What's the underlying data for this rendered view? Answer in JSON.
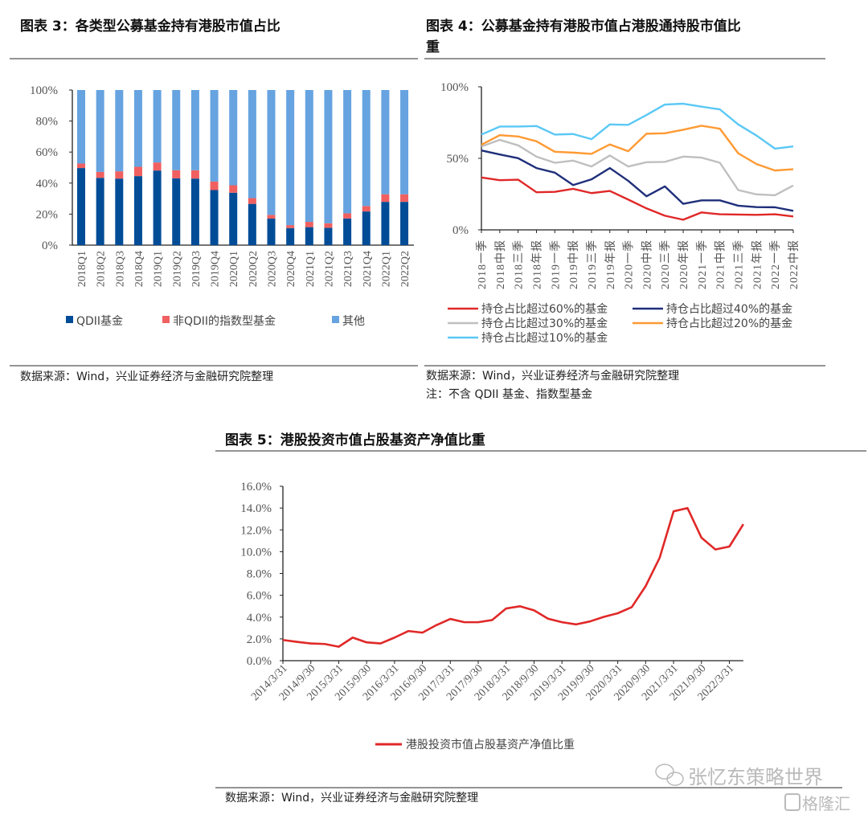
{
  "chart_data": [
    {
      "type": "bar",
      "stacked": true,
      "title": "图表 3：各类型公募基金持有港股市值占比",
      "categories": [
        "2018Q1",
        "2018Q2",
        "2018Q3",
        "2018Q4",
        "2019Q1",
        "2019Q2",
        "2019Q3",
        "2019Q4",
        "2020Q1",
        "2020Q2",
        "2020Q3",
        "2020Q4",
        "2021Q1",
        "2021Q2",
        "2021Q3",
        "2021Q4",
        "2022Q1",
        "2022Q2"
      ],
      "series": [
        {
          "name": "QDII基金",
          "color": "#004C97",
          "values": [
            49.7,
            43.4,
            42.9,
            44.5,
            48.1,
            43.1,
            42.9,
            35.5,
            33.8,
            26.6,
            17.1,
            11.0,
            11.6,
            11.2,
            17.2,
            21.7,
            27.9,
            27.9
          ]
        },
        {
          "name": "非QDII的指数型基金",
          "color": "#F06060",
          "values": [
            2.9,
            3.8,
            4.7,
            6.0,
            5.2,
            5.2,
            5.4,
            5.5,
            4.8,
            3.7,
            2.4,
            1.9,
            3.4,
            2.9,
            3.3,
            3.5,
            4.9,
            4.9
          ]
        },
        {
          "name": "其他",
          "color": "#66A3E0",
          "values": [
            47.4,
            52.8,
            52.4,
            49.5,
            46.7,
            51.7,
            51.7,
            59.0,
            61.4,
            69.7,
            80.5,
            87.1,
            85.0,
            85.9,
            79.5,
            74.8,
            67.2,
            67.2
          ]
        }
      ],
      "yticks": [
        "0%",
        "20%",
        "40%",
        "60%",
        "80%",
        "100%"
      ],
      "ylim": [
        0,
        100
      ],
      "legend": "bottom",
      "source": "数据来源：Wind，兴业证券经济与金融研究院整理"
    },
    {
      "type": "line",
      "title_line1": "图表 4：公募基金持有港股市值占港股通持股市值比",
      "title_line2": "重",
      "categories": [
        "2018一季",
        "2018中报",
        "2018三季",
        "2018年报",
        "2019一季",
        "2019中报",
        "2019三季",
        "2019年报",
        "2020一季",
        "2020中报",
        "2020三季",
        "2020年报",
        "2021一季",
        "2021中报",
        "2021三季",
        "2021年报",
        "2022一季",
        "2022中报"
      ],
      "series": [
        {
          "name": "持仓占比超过60%的基金",
          "color": "#E02828",
          "values": [
            36.6,
            34.7,
            35.1,
            26.3,
            26.6,
            28.7,
            25.7,
            27.2,
            21.2,
            15.0,
            9.9,
            7.1,
            12.2,
            10.9,
            10.7,
            10.5,
            10.9,
            9.4
          ]
        },
        {
          "name": "持仓占比超过40%的基金",
          "color": "#1F2F7A",
          "values": [
            55.5,
            52.7,
            50.1,
            43.2,
            40.0,
            31.3,
            35.3,
            43.2,
            34.3,
            23.5,
            30.4,
            18.2,
            20.6,
            20.6,
            16.9,
            15.9,
            15.8,
            13.3
          ]
        },
        {
          "name": "持仓占比超过30%的基金",
          "color": "#BFBFBF",
          "values": [
            58.3,
            62.9,
            59.1,
            51.2,
            46.9,
            48.4,
            44.3,
            52.0,
            44.3,
            47.3,
            47.5,
            51.2,
            50.5,
            46.9,
            27.8,
            24.8,
            24.2,
            31.0
          ]
        },
        {
          "name": "持仓占比超过20%的基金",
          "color": "#FF9A33",
          "values": [
            59.5,
            66.2,
            65.3,
            61.9,
            54.6,
            54.0,
            53.1,
            59.7,
            55.0,
            67.2,
            67.5,
            70.0,
            72.8,
            70.7,
            53.5,
            46.0,
            41.5,
            42.4
          ]
        },
        {
          "name": "持仓占比超过10%的基金",
          "color": "#5BC8F5",
          "values": [
            66.6,
            72.2,
            72.2,
            72.6,
            66.6,
            67.0,
            63.4,
            73.7,
            73.4,
            80.3,
            87.6,
            88.2,
            86.1,
            84.2,
            73.7,
            65.9,
            56.8,
            58.3
          ]
        }
      ],
      "yticks": [
        "0%",
        "50%",
        "100%"
      ],
      "ylim": [
        0,
        100
      ],
      "legend": "bottom",
      "source": "数据来源：Wind，兴业证券经济与金融研究院整理",
      "note": "注：不含 QDII 基金、指数型基金"
    },
    {
      "type": "line",
      "title": "图表 5：港股投资市值占股基资产净值比重",
      "x_tick_labels": [
        "2014/3/31",
        "2014/9/30",
        "2015/3/31",
        "2015/9/30",
        "2016/3/31",
        "2016/9/30",
        "2017/3/31",
        "2017/9/30",
        "2018/3/31",
        "2018/9/30",
        "2019/3/31",
        "2019/9/30",
        "2020/3/31",
        "2020/9/30",
        "2021/3/31",
        "2021/9/30",
        "2022/3/31"
      ],
      "x_start": "2014/3/31",
      "x_end": "2022/6/30",
      "x_frequency": "quarterly",
      "series": [
        {
          "name": "港股投资市值占股基资产净值比重",
          "color": "#E02828",
          "values": [
            1.9,
            1.73,
            1.58,
            1.53,
            1.28,
            2.12,
            1.68,
            1.58,
            2.12,
            2.72,
            2.57,
            3.26,
            3.83,
            3.53,
            3.53,
            3.73,
            4.79,
            4.99,
            4.62,
            3.85,
            3.53,
            3.33,
            3.6,
            4.02,
            4.35,
            4.91,
            6.84,
            9.43,
            13.7,
            14.0,
            11.28,
            10.2,
            10.47,
            12.52
          ]
        }
      ],
      "yticks": [
        "0.0%",
        "2.0%",
        "4.0%",
        "6.0%",
        "8.0%",
        "10.0%",
        "12.0%",
        "14.0%",
        "16.0%"
      ],
      "ylim": [
        0,
        16
      ],
      "legend": "bottom",
      "source": "数据来源：Wind，兴业证券经济与金融研究院整理"
    }
  ],
  "watermark": {
    "account": "张忆东策略世界",
    "logo": "格隆汇"
  }
}
